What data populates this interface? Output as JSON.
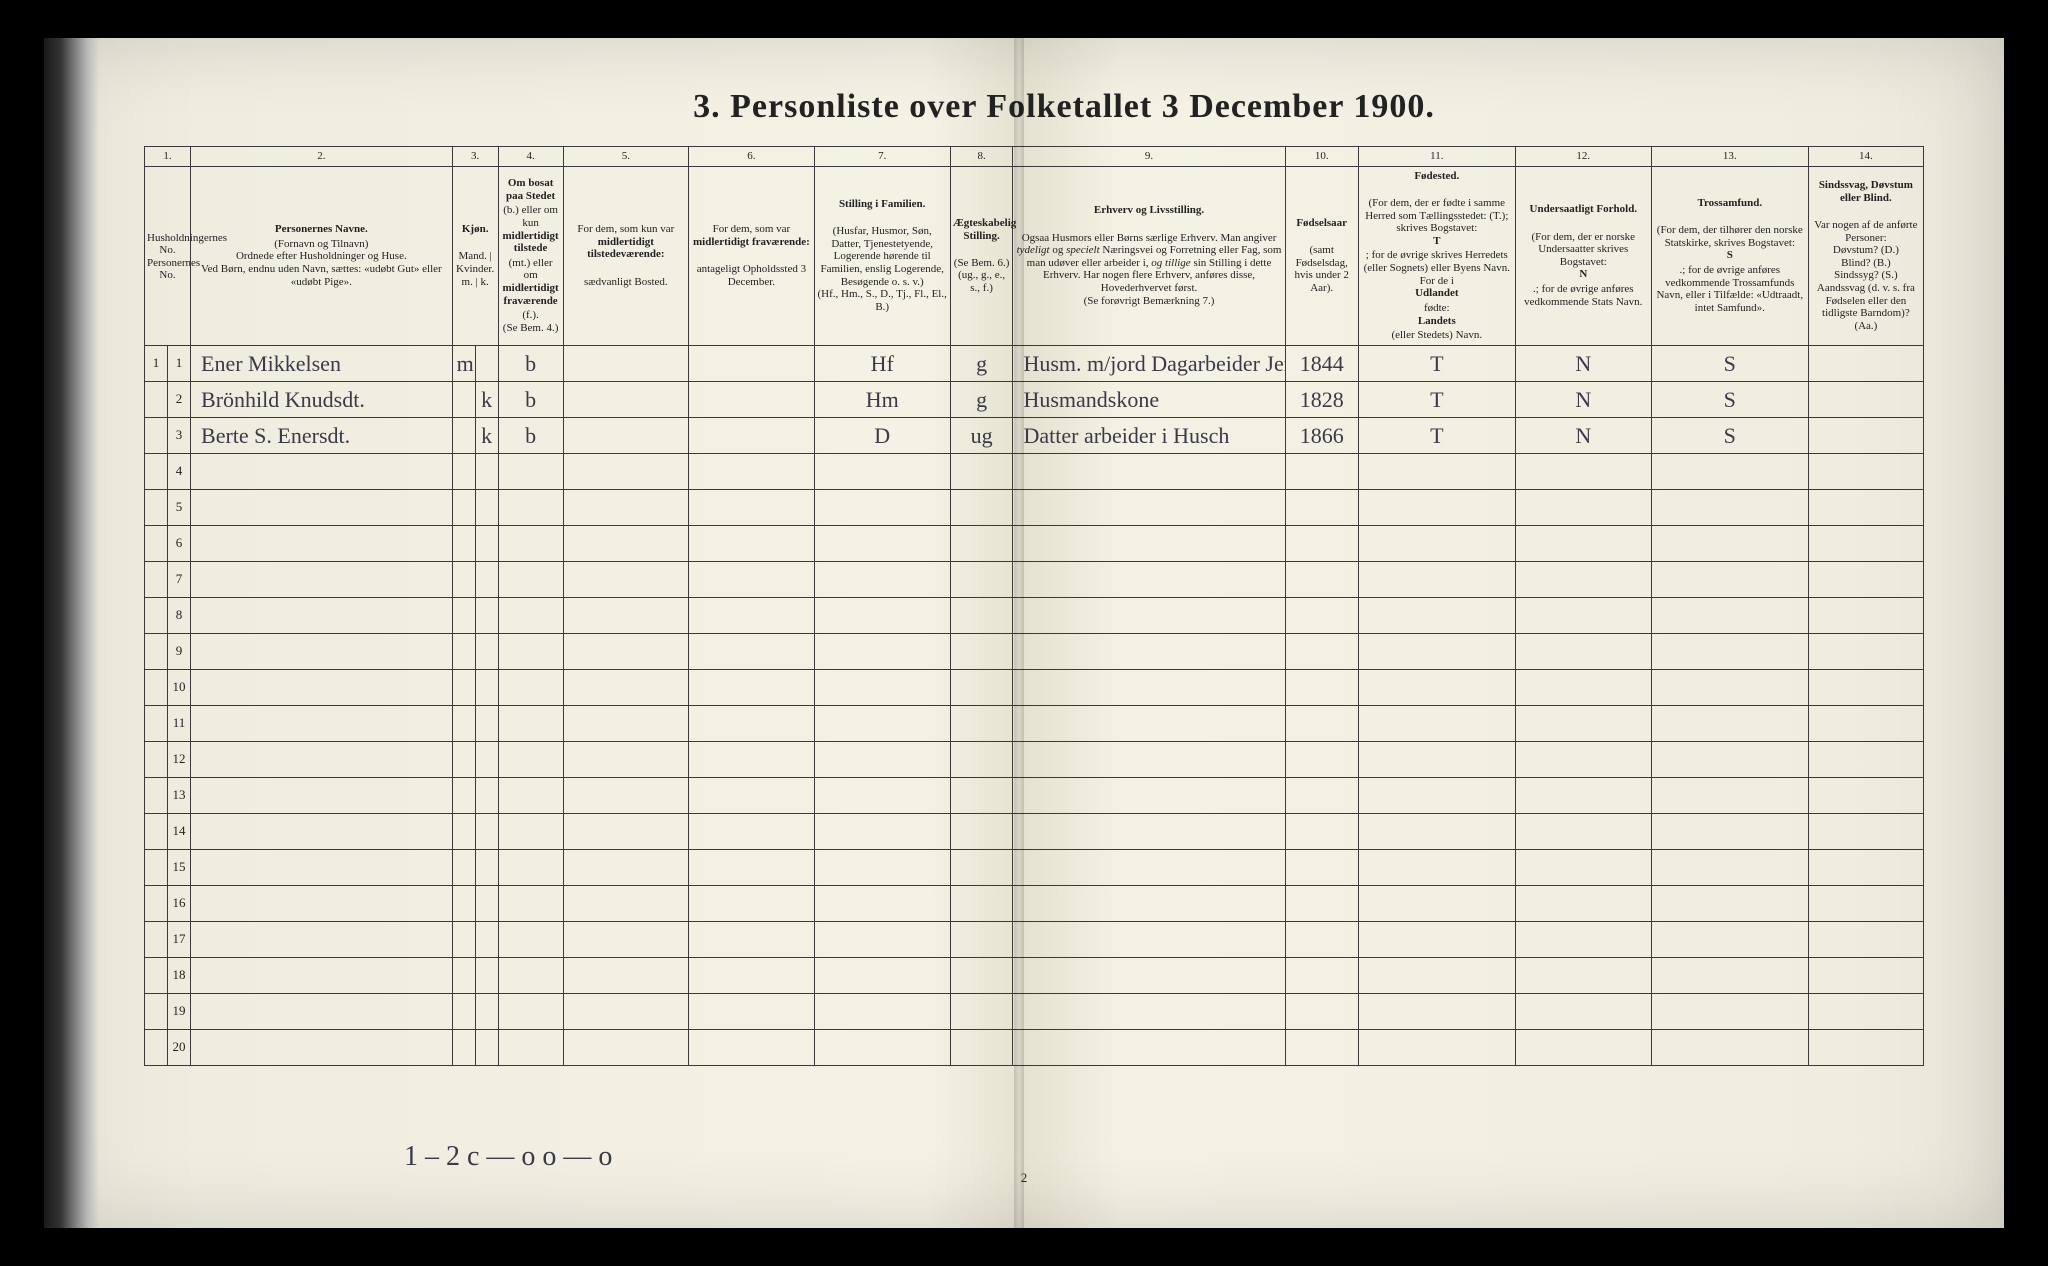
{
  "title": "3. Personliste over Folketallet 3 December 1900.",
  "columns": {
    "c1": {
      "num": "1.",
      "head": "<b></b>Husholdningernes No.<br>Personernes No."
    },
    "c2": {
      "num": "2.",
      "head": "<b>Personernes Navne.</b>(Fornavn og Tilnavn)<br>Ordnede efter Husholdninger og Huse.<br>Ved Børn, endnu uden Navn, sættes: «udøbt Gut» eller «udøbt Pige»."
    },
    "c3": {
      "num": "3.",
      "head": "<b>Kjøn.</b><br>Mand. | Kvinder.<br>m. | k."
    },
    "c4": {
      "num": "4.",
      "head": "<b>Om bosat paa Stedet</b> (b.) eller om kun <b>midlertidigt tilstede</b> (mt.) eller om <b>midlertidigt fraværende</b> (f.).<br>(Se Bem. 4.)"
    },
    "c5": {
      "num": "5.",
      "head": "For dem, som kun var <b>midlertidigt tilstedeværende:</b><br>sædvanligt Bosted."
    },
    "c6": {
      "num": "6.",
      "head": "For dem, som var <b>midlertidigt fraværende:</b><br>antageligt Opholdssted 3 December."
    },
    "c7": {
      "num": "7.",
      "head": "<b>Stilling i Familien.</b><br>(Husfar, Husmor, Søn, Datter, Tjenestetyende, Logerende hørende til Familien, enslig Logerende, Besøgende o. s. v.)<br>(Hf., Hm., S., D., Tj., Fl., El., B.)"
    },
    "c8": {
      "num": "8.",
      "head": "<b>Ægteskabelig Stilling.</b><br>(Se Bem. 6.)<br>(ug., g., e., s., f.)"
    },
    "c9": {
      "num": "9.",
      "head": "<b>Erhverv og Livsstilling.</b><br>Ogsaa Husmors eller Børns særlige Erhverv. Man angiver <i>tydeligt</i> og <i>specielt</i> Næringsvei og Forretning eller Fag, som man udøver eller arbeider i, <i>og tillige</i> sin Stilling i dette Erhverv. Har nogen flere Erhverv, anføres disse, Hovederhvervet først.<br>(Se forøvrigt Bemærkning 7.)"
    },
    "c10": {
      "num": "10.",
      "head": "<b>Fødselsaar</b><br>(samt Fødselsdag, hvis under 2 Aar)."
    },
    "c11": {
      "num": "11.",
      "head": "<b>Fødested.</b><br>(For dem, der er fødte i samme Herred som Tællingsstedet: (T.); skrives Bogstavet: <b>T</b>; for de øvrige skrives Herredets (eller Sognets) eller Byens Navn.<br>For de i <b>Udlandet</b> fødte: <b>Landets</b> (eller Stedets) Navn."
    },
    "c12": {
      "num": "12.",
      "head": "<b>Undersaatligt Forhold.</b><br>(For dem, der er norske Undersaatter skrives Bogstavet: <b>N</b>.; for de øvrige anføres vedkommende Stats Navn."
    },
    "c13": {
      "num": "13.",
      "head": "<b>Trossamfund.</b><br>(For dem, der tilhører den norske Statskirke, skrives Bogstavet: <b>S</b>.; for de øvrige anføres vedkommende Trossamfunds Navn, eller i Tilfælde: «Udtraadt, intet Samfund»."
    },
    "c14": {
      "num": "14.",
      "head": "<b>Sindssvag, Døvstum eller Blind.</b><br>Var nogen af de anførte Personer:<br>Døvstum? (D.)<br>Blind? (B.)<br>Sindssyg? (S.)<br>Aandssvag (d. v. s. fra Fødselen eller den tidligste Barndom)? (Aa.)"
    }
  },
  "col_widths": [
    "22px",
    "22px",
    "250px",
    "22px",
    "22px",
    "62px",
    "120px",
    "120px",
    "130px",
    "60px",
    "260px",
    "70px",
    "150px",
    "130px",
    "150px",
    "110px"
  ],
  "rows": [
    {
      "hh": "1",
      "pn": "1",
      "name": "Ener Mikkelsen",
      "m": "m",
      "k": "",
      "bos": "b",
      "c5": "",
      "c6": "",
      "fam": "Hf",
      "ekt": "g",
      "erh": "Husm. m/jord Dagarbeider Jernbeis.",
      "aar": "1844",
      "fst": "T",
      "und": "N",
      "tro": "S",
      "c14": ""
    },
    {
      "hh": "",
      "pn": "2",
      "name": "Brönhild Knudsdt.",
      "m": "",
      "k": "k",
      "bos": "b",
      "c5": "",
      "c6": "",
      "fam": "Hm",
      "ekt": "g",
      "erh": "Husmandskone",
      "aar": "1828",
      "fst": "T",
      "und": "N",
      "tro": "S",
      "c14": ""
    },
    {
      "hh": "",
      "pn": "3",
      "name": "Berte S. Enersdt.",
      "m": "",
      "k": "k",
      "bos": "b",
      "c5": "",
      "c6": "",
      "fam": "D",
      "ekt": "ug",
      "erh": "Datter arbeider i Husch",
      "aar": "1866",
      "fst": "T",
      "und": "N",
      "tro": "S",
      "c14": ""
    }
  ],
  "empty_rows": [
    4,
    5,
    6,
    7,
    8,
    9,
    10,
    11,
    12,
    13,
    14,
    15,
    16,
    17,
    18,
    19,
    20
  ],
  "footer_scrawl": "1 – 2 c — o   o  — o",
  "page_num_bottom": "2",
  "colors": {
    "paper": "#f2efde",
    "ink": "#222222",
    "handwriting": "#3a3a48",
    "border": "#3a3a3a"
  }
}
